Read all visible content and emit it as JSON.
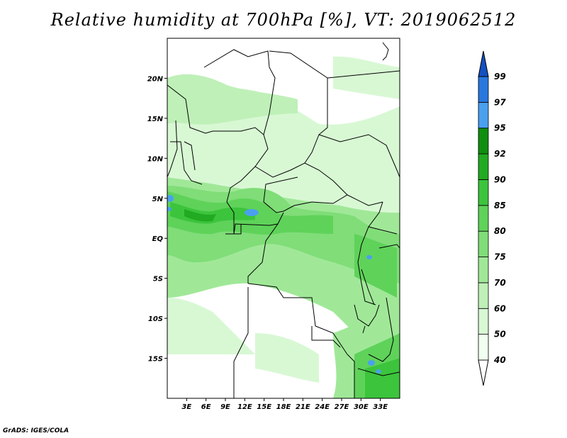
{
  "title": "Relative humidity at 700hPa [%], VT: 2019062512",
  "credit": "GrADS: IGES/COLA",
  "map": {
    "lon_range": [
      0,
      36
    ],
    "lat_range": [
      -20,
      25
    ],
    "lat_ticks": [
      {
        "value": 20,
        "label": "20N"
      },
      {
        "value": 15,
        "label": "15N"
      },
      {
        "value": 10,
        "label": "10N"
      },
      {
        "value": 5,
        "label": "5N"
      },
      {
        "value": 0,
        "label": "EQ"
      },
      {
        "value": -5,
        "label": "5S"
      },
      {
        "value": -10,
        "label": "10S"
      },
      {
        "value": -15,
        "label": "15S"
      }
    ],
    "lon_ticks": [
      {
        "value": 3,
        "label": "3E"
      },
      {
        "value": 6,
        "label": "6E"
      },
      {
        "value": 9,
        "label": "9E"
      },
      {
        "value": 12,
        "label": "12E"
      },
      {
        "value": 15,
        "label": "15E"
      },
      {
        "value": 18,
        "label": "18E"
      },
      {
        "value": 21,
        "label": "21E"
      },
      {
        "value": 24,
        "label": "24E"
      },
      {
        "value": 27,
        "label": "27E"
      },
      {
        "value": 30,
        "label": "30E"
      },
      {
        "value": 33,
        "label": "33E"
      }
    ]
  },
  "colorbar": {
    "levels": [
      {
        "label": "40",
        "color": "#f0fff0"
      },
      {
        "label": "50",
        "color": "#d8f8d4"
      },
      {
        "label": "60",
        "color": "#bff0b8"
      },
      {
        "label": "70",
        "color": "#a0e898"
      },
      {
        "label": "75",
        "color": "#80dd78"
      },
      {
        "label": "80",
        "color": "#5fd25a"
      },
      {
        "label": "85",
        "color": "#3cc43c"
      },
      {
        "label": "90",
        "color": "#22aa22"
      },
      {
        "label": "92",
        "color": "#108e10"
      },
      {
        "label": "95",
        "color": "#4aa0ee"
      },
      {
        "label": "97",
        "color": "#2a78de"
      },
      {
        "label": "99",
        "color": "#1450c0"
      }
    ]
  },
  "colors": {
    "frame": "#000000",
    "borders": "#000000"
  }
}
